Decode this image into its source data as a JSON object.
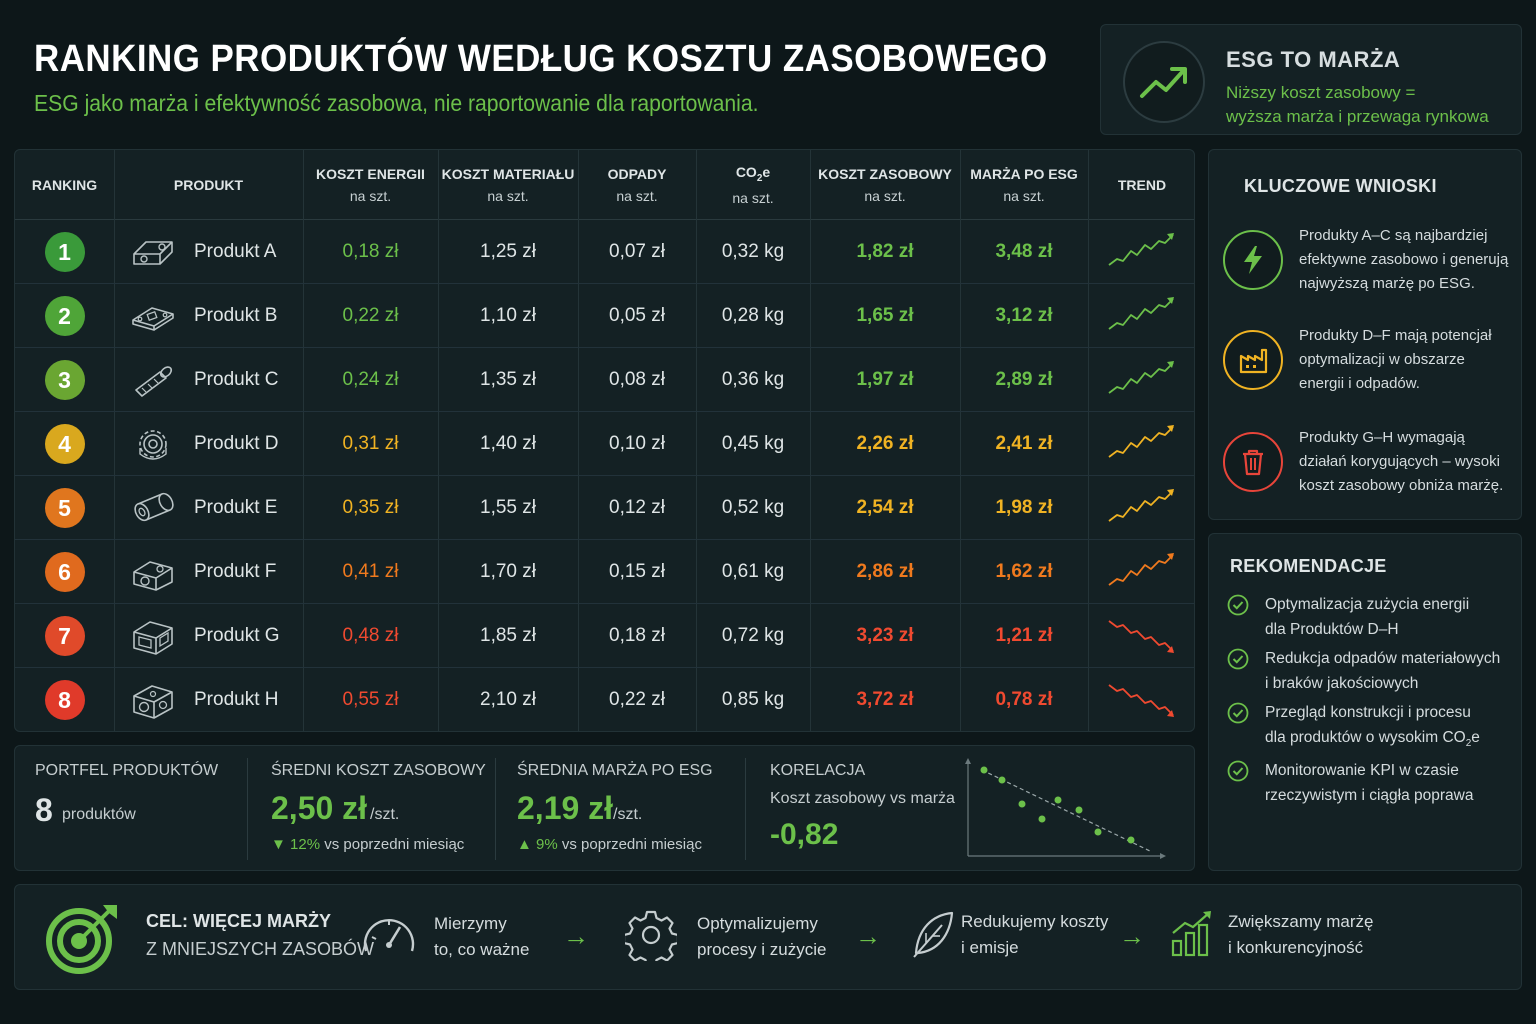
{
  "header": {
    "title": "RANKING PRODUKTÓW WEDŁUG KOSZTU ZASOBOWEGO",
    "subtitle": "ESG jako marża i efektywność zasobowa, nie raportowanie dla raportowania."
  },
  "esg_box": {
    "icon": "trend-up-icon",
    "title": "ESG TO MARŻA",
    "line1": "Niższy koszt zasobowy =",
    "line2": "wyższa marża i przewaga rynkowa"
  },
  "table": {
    "headers": {
      "ranking": "RANKING",
      "produkt": "PRODUKT",
      "energia": "KOSZT ENERGII",
      "material": "KOSZT MATERIAŁU",
      "odpady": "ODPADY",
      "co2": "CO",
      "co2_sub": "2",
      "co2_e": "e",
      "zasobowy": "KOSZT ZASOBOWY",
      "marza": "MARŻA PO ESG",
      "trend": "TREND",
      "per_unit": "na szt."
    },
    "rows": [
      {
        "rank": "1",
        "name": "Produkt A",
        "energia": "0,18 zł",
        "material": "1,25 zł",
        "odpady": "0,07 zł",
        "co2": "0,32 kg",
        "zasobowy": "1,82 zł",
        "marza": "3,48 zł",
        "badge_color": "#3a9a3a",
        "value_color": "#6cc04a",
        "trend": "up",
        "icon": "bracket-part-icon"
      },
      {
        "rank": "2",
        "name": "Produkt B",
        "energia": "0,22 zł",
        "material": "1,10 zł",
        "odpady": "0,05 zł",
        "co2": "0,28 kg",
        "zasobowy": "1,65 zł",
        "marza": "3,12 zł",
        "badge_color": "#4fa538",
        "value_color": "#6cc04a",
        "trend": "up",
        "icon": "plate-part-icon"
      },
      {
        "rank": "3",
        "name": "Produkt C",
        "energia": "0,24 zł",
        "material": "1,35 zł",
        "odpady": "0,08 zł",
        "co2": "0,36 kg",
        "zasobowy": "1,97 zł",
        "marza": "2,89 zł",
        "badge_color": "#6aa632",
        "value_color": "#6cc04a",
        "trend": "up",
        "icon": "bolt-part-icon"
      },
      {
        "rank": "4",
        "name": "Produkt D",
        "energia": "0,31 zł",
        "material": "1,40 zł",
        "odpady": "0,10 zł",
        "co2": "0,45 kg",
        "zasobowy": "2,26 zł",
        "marza": "2,41 zł",
        "badge_color": "#d9a81e",
        "value_color": "#f0b323",
        "trend": "up",
        "icon": "gear-part-icon"
      },
      {
        "rank": "5",
        "name": "Produkt E",
        "energia": "0,35 zł",
        "material": "1,55 zł",
        "odpady": "0,12 zł",
        "co2": "0,52 kg",
        "zasobowy": "2,54 zł",
        "marza": "1,98 zł",
        "badge_color": "#e0761e",
        "value_color": "#f0b323",
        "trend": "up",
        "icon": "cylinder-part-icon"
      },
      {
        "rank": "6",
        "name": "Produkt F",
        "energia": "0,41 zł",
        "material": "1,70 zł",
        "odpady": "0,15 zł",
        "co2": "0,61 kg",
        "zasobowy": "2,86 zł",
        "marza": "1,62 zł",
        "badge_color": "#e06a1e",
        "value_color": "#f07a1e",
        "trend": "up",
        "icon": "block-part-icon"
      },
      {
        "rank": "7",
        "name": "Produkt G",
        "energia": "0,48 zł",
        "material": "1,85 zł",
        "odpady": "0,18 zł",
        "co2": "0,72 kg",
        "zasobowy": "3,23 zł",
        "marza": "1,21 zł",
        "badge_color": "#e04a2a",
        "value_color": "#f04a30",
        "trend": "down",
        "icon": "frame-part-icon"
      },
      {
        "rank": "8",
        "name": "Produkt H",
        "energia": "0,55 zł",
        "material": "2,10 zł",
        "odpady": "0,22 zł",
        "co2": "0,85 kg",
        "zasobowy": "3,72 zł",
        "marza": "0,78 zł",
        "badge_color": "#e03a2a",
        "value_color": "#f04a30",
        "trend": "down",
        "icon": "cube-part-icon"
      }
    ]
  },
  "wnioski": {
    "title": "KLUCZOWE WNIOSKI",
    "items": [
      {
        "icon": "lightning-icon",
        "color": "#6cc04a",
        "text": "Produkty A–C są najbardziej efektywne zasobowo i generują najwyższą marżę po ESG."
      },
      {
        "icon": "factory-icon",
        "color": "#f0b323",
        "text": "Produkty D–F mają potencjał optymalizacji w obszarze energii i odpadów."
      },
      {
        "icon": "trash-icon",
        "color": "#e8453a",
        "text": "Produkty G–H wymagają działań korygujących – wysoki koszt zasobowy obniża marżę."
      }
    ]
  },
  "rekomendacje": {
    "title": "REKOMENDACJE",
    "items": [
      {
        "line1": "Optymalizacja zużycia energii",
        "line2": "dla Produktów D–H",
        "sub": ""
      },
      {
        "line1": "Redukcja odpadów materiałowych",
        "line2": "i braków jakościowych",
        "sub": ""
      },
      {
        "line1": "Przegląd konstrukcji i procesu",
        "line2": "dla produktów o wysokim CO",
        "sub": "2",
        "tail": "e"
      },
      {
        "line1": "Monitorowanie KPI w czasie",
        "line2": "rzeczywistym i ciągła poprawa",
        "sub": ""
      }
    ]
  },
  "stats": {
    "portfel": {
      "label": "PORTFEL PRODUKTÓW",
      "value": "8",
      "unit": "produktów"
    },
    "koszt": {
      "label": "ŚREDNI KOSZT ZASOBOWY",
      "value": "2,50 zł",
      "unit": "/szt.",
      "delta": "12%",
      "delta_text": "vs poprzedni miesiąc"
    },
    "marza": {
      "label": "ŚREDNIA MARŻA PO ESG",
      "value": "2,19 zł",
      "unit": "/szt.",
      "delta": "9%",
      "delta_text": "vs poprzedni miesiąc"
    },
    "korelacja": {
      "label": "KORELACJA",
      "sublabel": "Koszt zasobowy vs marża",
      "value": "-0,82"
    }
  },
  "bottom": {
    "goal_line1": "CEL: WIĘCEJ MARŻY",
    "goal_line2": "Z MNIEJSZYCH ZASOBÓW",
    "steps": [
      {
        "icon": "gauge-icon",
        "line1": "Mierzymy",
        "line2": "to, co ważne"
      },
      {
        "icon": "gear-icon",
        "line1": "Optymalizujemy",
        "line2": "procesy i zużycie"
      },
      {
        "icon": "leaf-icon",
        "line1": "Redukujemy koszty",
        "line2": "i emisje"
      },
      {
        "icon": "bar-growth-icon",
        "line1": "Zwiększamy marżę",
        "line2": "i konkurencyjność"
      }
    ],
    "arrow": "→"
  },
  "colors": {
    "green": "#6cc04a",
    "yellow": "#f0b323",
    "orange": "#f07a1e",
    "red": "#f04a30",
    "background": "#0d1719",
    "panel": "#142124"
  }
}
